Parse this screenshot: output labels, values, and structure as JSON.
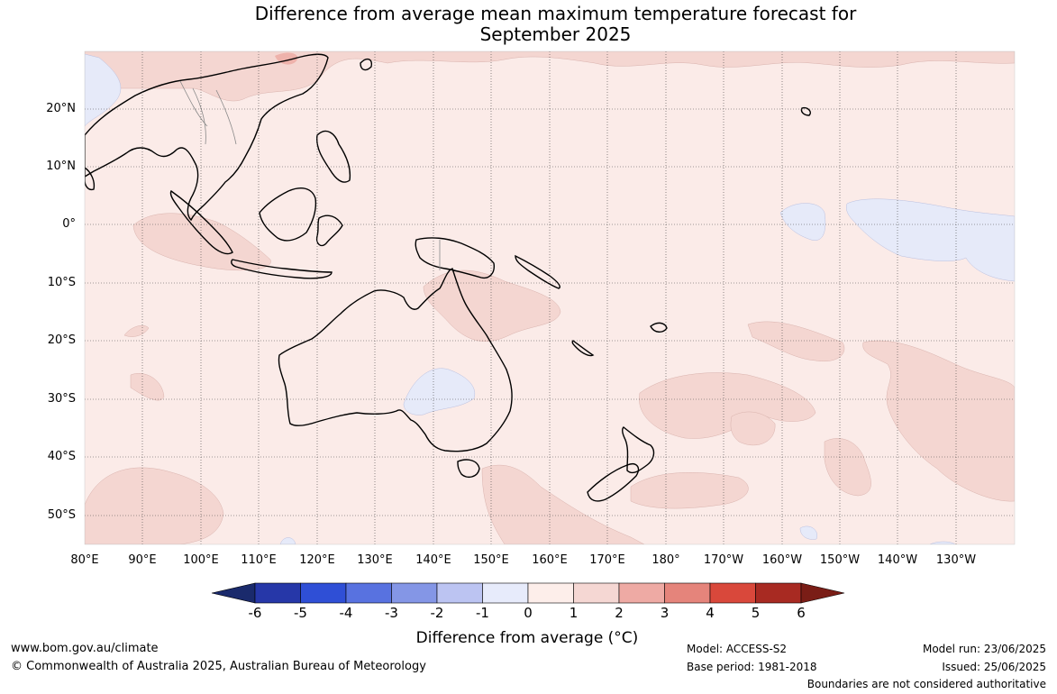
{
  "title_line1": "Difference from average mean maximum temperature forecast for",
  "title_line2": "September 2025",
  "lat_labels": [
    "20°N",
    "10°N",
    "0°",
    "10°S",
    "20°S",
    "30°S",
    "40°S",
    "50°S"
  ],
  "lon_labels": [
    "80°E",
    "90°E",
    "100°E",
    "110°E",
    "120°E",
    "130°E",
    "140°E",
    "150°E",
    "160°E",
    "170°E",
    "180°",
    "170°W",
    "160°W",
    "150°W",
    "140°W",
    "130°W"
  ],
  "colorbar": {
    "ticks": [
      "-6",
      "-5",
      "-4",
      "-3",
      "-2",
      "-1",
      "0",
      "1",
      "2",
      "3",
      "4",
      "5",
      "6"
    ],
    "label": "Difference from average (°C)",
    "colors": [
      "#1a2a6c",
      "#2637a8",
      "#2f4fd6",
      "#5872e0",
      "#8496e6",
      "#bcc4f2",
      "#e7ebfb",
      "#fdeeea",
      "#f5d7d3",
      "#eeaaa4",
      "#e5847b",
      "#d9483b",
      "#a82a22",
      "#7a1d16"
    ]
  },
  "map_colors": {
    "background": "#fbebe8",
    "warm1": "#f4d6d1",
    "warm2": "#eeb2ab",
    "cool1": "#e6eaf9",
    "land_outline": "#000000",
    "border": "#888888",
    "grid": "#444444"
  },
  "footer": {
    "website": "www.bom.gov.au/climate",
    "copyright": "© Commonwealth of Australia 2025, Australian Bureau of Meteorology",
    "model": "Model: ACCESS-S2",
    "base_period": "Base period: 1981-2018",
    "model_run": "Model run: 23/06/2025",
    "issued": "Issued: 25/06/2025",
    "disclaimer": "Boundaries are not considered authoritative"
  }
}
